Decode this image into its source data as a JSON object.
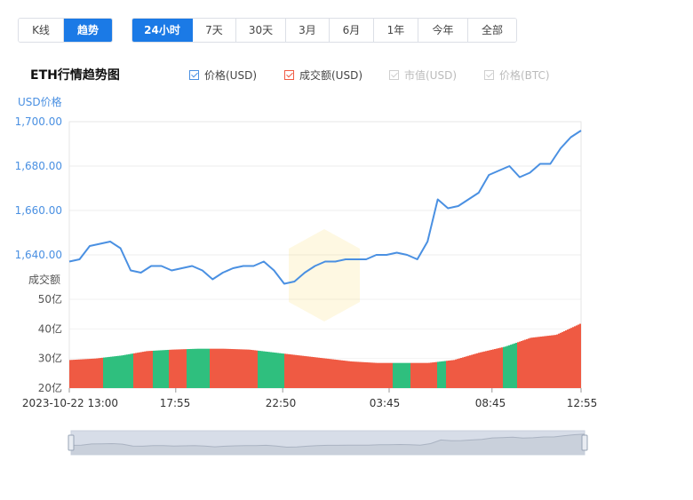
{
  "toolbar": {
    "view_tabs": [
      {
        "label": "K线",
        "active": false
      },
      {
        "label": "趋势",
        "active": true
      }
    ],
    "range_tabs": [
      {
        "label": "24小时",
        "active": true
      },
      {
        "label": "7天",
        "active": false
      },
      {
        "label": "30天",
        "active": false
      },
      {
        "label": "3月",
        "active": false
      },
      {
        "label": "6月",
        "active": false
      },
      {
        "label": "1年",
        "active": false
      },
      {
        "label": "今年",
        "active": false
      },
      {
        "label": "全部",
        "active": false
      }
    ]
  },
  "legend": [
    {
      "label": "价格(USD)",
      "checked": true,
      "color": "#4a90e2",
      "disabled": false
    },
    {
      "label": "成交额(USD)",
      "checked": true,
      "color": "#ef5a43",
      "disabled": false
    },
    {
      "label": "市值(USD)",
      "checked": true,
      "color": "#cfcfcf",
      "disabled": true
    },
    {
      "label": "价格(BTC)",
      "checked": true,
      "color": "#cfcfcf",
      "disabled": true
    }
  ],
  "colors": {
    "price_line": "#4a90e2",
    "vol_up": "#ef5a43",
    "vol_down": "#2fbf7e",
    "axis_text": "#4a90e2",
    "active_tab": "#1b7ae6"
  },
  "chart_data": {
    "type": "line",
    "title": "ETH行情趋势图",
    "price_axis_label": "USD价格",
    "volume_axis_label": "成交额",
    "x_tick_labels": [
      "2023-10-22 13:00",
      "17:55",
      "22:50",
      "03:45",
      "08:45",
      "12:55"
    ],
    "price_ticks": [
      "1,700.00",
      "1,680.00",
      "1,660.00",
      "1,640.00"
    ],
    "price_ylim": [
      1620,
      1700
    ],
    "volume_ticks": [
      "50亿",
      "40亿",
      "30亿",
      "20亿"
    ],
    "volume_ylim": [
      20,
      50
    ],
    "volume_unit": "亿 USD",
    "price_series": {
      "name": "价格(USD)",
      "x": [
        0,
        2,
        4,
        6,
        8,
        10,
        12,
        14,
        16,
        18,
        20,
        22,
        24,
        26,
        28,
        30,
        32,
        34,
        36,
        38,
        40,
        42,
        44,
        46,
        48,
        50,
        52,
        54,
        56,
        58,
        60,
        62,
        64,
        66,
        68,
        70,
        72,
        74,
        76,
        78,
        80,
        82,
        84,
        86,
        88,
        90,
        92,
        94,
        96,
        98,
        100
      ],
      "values": [
        1637,
        1638,
        1644,
        1645,
        1646,
        1643,
        1633,
        1632,
        1635,
        1635,
        1633,
        1634,
        1635,
        1633,
        1629,
        1632,
        1634,
        1635,
        1635,
        1637,
        1633,
        1627,
        1628,
        1632,
        1635,
        1637,
        1637,
        1638,
        1638,
        1638,
        1640,
        1640,
        1641,
        1640,
        1638,
        1646,
        1665,
        1661,
        1662,
        1665,
        1668,
        1676,
        1678,
        1680,
        1675,
        1677,
        1681,
        1681,
        1688,
        1693,
        1696
      ]
    },
    "volume_series": {
      "name": "成交额(USD)",
      "x": [
        0,
        5,
        10,
        15,
        20,
        25,
        30,
        35,
        40,
        45,
        50,
        55,
        60,
        65,
        70,
        75,
        80,
        85,
        90,
        95,
        100
      ],
      "values": [
        29.5,
        30,
        31,
        32.5,
        33,
        33.3,
        33.3,
        33,
        32,
        31,
        30,
        29,
        28.5,
        28.5,
        28.5,
        29.5,
        32,
        34,
        37,
        38,
        42
      ]
    }
  }
}
